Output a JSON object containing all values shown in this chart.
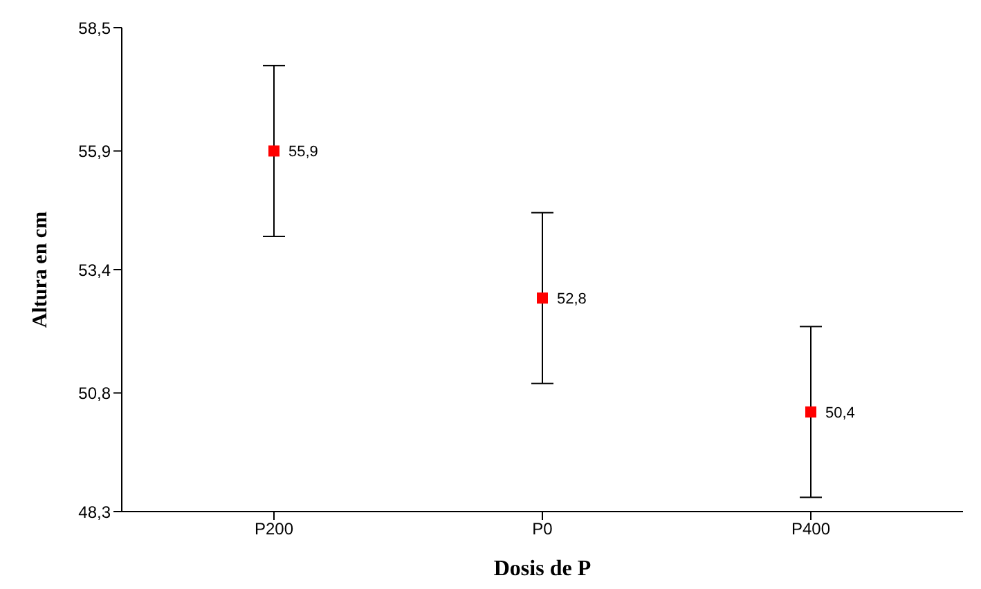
{
  "chart_data": {
    "type": "scatter",
    "xlabel": "Dosis de P",
    "ylabel": "Altura en cm",
    "categories": [
      "P200",
      "P0",
      "P400"
    ],
    "values": [
      55.9,
      52.8,
      50.4
    ],
    "errors": [
      1.8,
      1.8,
      1.8
    ],
    "value_labels": [
      "55,9",
      "52,8",
      "50,4"
    ],
    "color": "#ff0000",
    "marker": "square",
    "ylim": [
      48.3,
      58.5
    ],
    "yticks": [
      {
        "value": 48.3,
        "label": "48,3"
      },
      {
        "value": 50.8,
        "label": "50,8"
      },
      {
        "value": 53.4,
        "label": "53,4"
      },
      {
        "value": 55.9,
        "label": "55,9"
      },
      {
        "value": 58.5,
        "label": "58,5"
      }
    ],
    "grid": false,
    "legend": false
  }
}
